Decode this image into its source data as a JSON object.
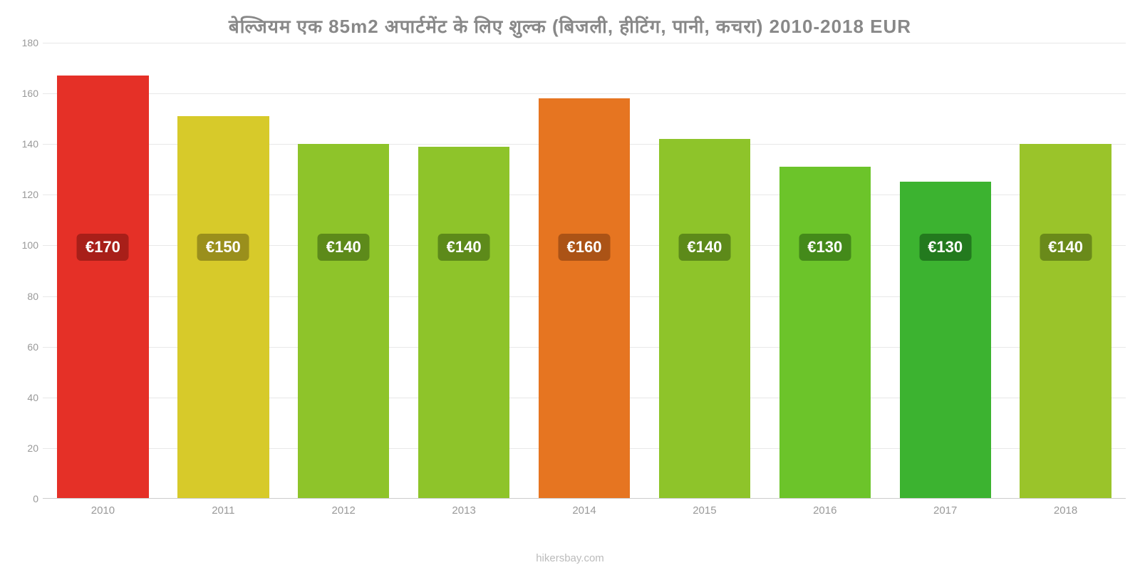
{
  "title": "बेल्जियम   एक   85m2 अपार्टमेंट   के   लिए   शुल्क   (बिजली, हीटिंग, पानी, कचरा) 2010-2018 EUR",
  "title_fontsize": 26,
  "footer": "hikersbay.com",
  "chart": {
    "type": "bar",
    "ylim_min": 0,
    "ylim_max": 180,
    "ytick_step": 20,
    "yticks": [
      0,
      20,
      40,
      60,
      80,
      100,
      120,
      140,
      160,
      180
    ],
    "grid_color": "#e8e8e8",
    "axis_label_color": "#999999",
    "axis_label_fontsize": 14,
    "background_color": "#ffffff",
    "value_badge_top_pct": 42,
    "value_badge_fontsize": 22,
    "bars": [
      {
        "year": "2010",
        "value": 167,
        "label": "€170",
        "bar_color": "#e53027",
        "badge_color": "#a81f19"
      },
      {
        "year": "2011",
        "value": 151,
        "label": "€150",
        "bar_color": "#d7ca2a",
        "badge_color": "#9a8f1c"
      },
      {
        "year": "2012",
        "value": 140,
        "label": "€140",
        "bar_color": "#8ec42a",
        "badge_color": "#5d8a1a"
      },
      {
        "year": "2013",
        "value": 139,
        "label": "€140",
        "bar_color": "#8ec42a",
        "badge_color": "#5d8a1a"
      },
      {
        "year": "2014",
        "value": 158,
        "label": "€160",
        "bar_color": "#e67521",
        "badge_color": "#ab5316"
      },
      {
        "year": "2015",
        "value": 142,
        "label": "€140",
        "bar_color": "#8ec42a",
        "badge_color": "#5d8a1a"
      },
      {
        "year": "2016",
        "value": 131,
        "label": "€130",
        "bar_color": "#6cc42a",
        "badge_color": "#448a1a"
      },
      {
        "year": "2017",
        "value": 125,
        "label": "€130",
        "bar_color": "#3cb330",
        "badge_color": "#237a1e"
      },
      {
        "year": "2018",
        "value": 140,
        "label": "€140",
        "bar_color": "#9ac42a",
        "badge_color": "#6a8a1a"
      }
    ]
  }
}
